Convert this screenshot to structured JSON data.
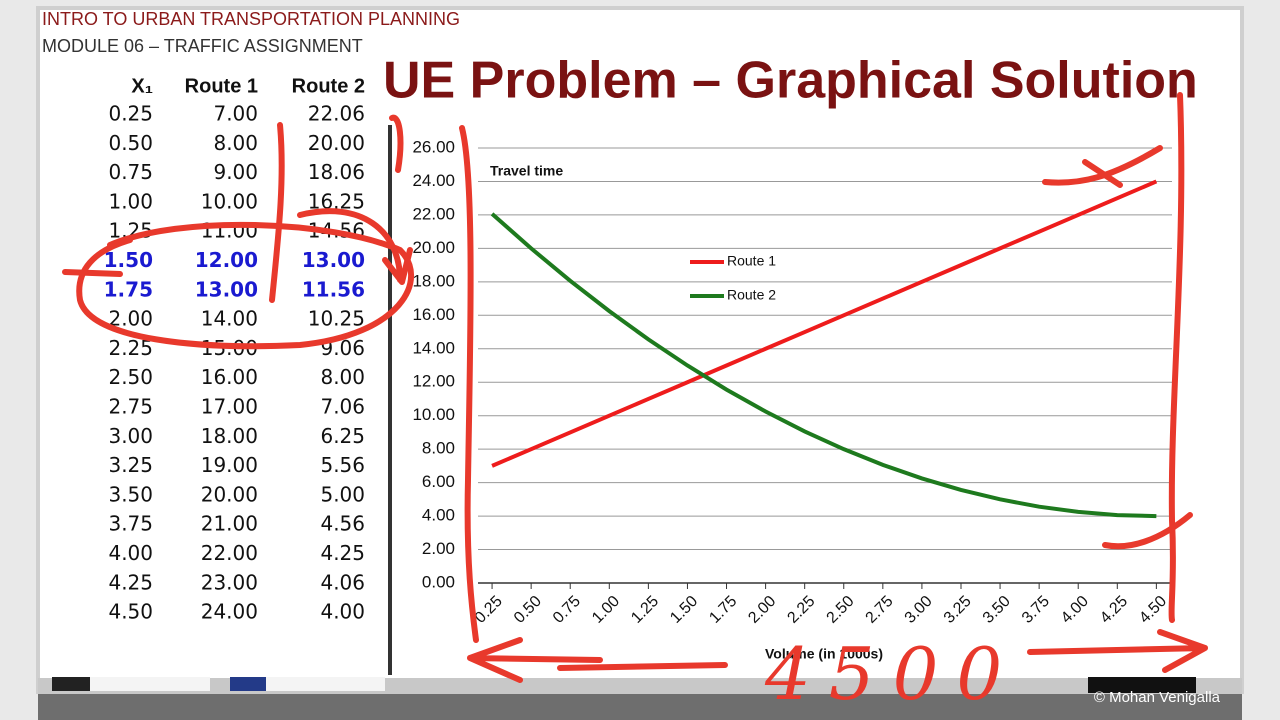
{
  "header": {
    "course": "INTRO TO URBAN TRANSPORTATION PLANNING",
    "module": "MODULE 06 – TRAFFIC ASSIGNMENT"
  },
  "table": {
    "columns": [
      "X₁",
      "Route 1",
      "Route 2"
    ],
    "rows": [
      [
        "0.25",
        "7.00",
        "22.06"
      ],
      [
        "0.50",
        "8.00",
        "20.00"
      ],
      [
        "0.75",
        "9.00",
        "18.06"
      ],
      [
        "1.00",
        "10.00",
        "16.25"
      ],
      [
        "1.25",
        "11.00",
        "14.56"
      ],
      [
        "1.50",
        "12.00",
        "13.00"
      ],
      [
        "1.75",
        "13.00",
        "11.56"
      ],
      [
        "2.00",
        "14.00",
        "10.25"
      ],
      [
        "2.25",
        "15.00",
        "9.06"
      ],
      [
        "2.50",
        "16.00",
        "8.00"
      ],
      [
        "2.75",
        "17.00",
        "7.06"
      ],
      [
        "3.00",
        "18.00",
        "6.25"
      ],
      [
        "3.25",
        "19.00",
        "5.56"
      ],
      [
        "3.50",
        "20.00",
        "5.00"
      ],
      [
        "3.75",
        "21.00",
        "4.56"
      ],
      [
        "4.00",
        "22.00",
        "4.25"
      ],
      [
        "4.25",
        "23.00",
        "4.06"
      ],
      [
        "4.50",
        "24.00",
        "4.00"
      ]
    ],
    "highlighted_rows": [
      5,
      6
    ],
    "highlight_color": "#1a1ad0"
  },
  "chart_data": {
    "type": "line",
    "title": "UE Problem – Graphical Solution",
    "y_label": "Travel time",
    "x_label": "Volume (in 1000s)",
    "x": [
      0.25,
      0.5,
      0.75,
      1,
      1.25,
      1.5,
      1.75,
      2,
      2.25,
      2.5,
      2.75,
      3,
      3.25,
      3.5,
      3.75,
      4,
      4.25,
      4.5
    ],
    "series": [
      {
        "name": "Route 1",
        "color": "#ee1c1c",
        "values": [
          7,
          8,
          9,
          10,
          11,
          12,
          13,
          14,
          15,
          16,
          17,
          18,
          19,
          20,
          21,
          22,
          23,
          24
        ]
      },
      {
        "name": "Route 2",
        "color": "#1e7a1e",
        "values": [
          22.06,
          20,
          18.06,
          16.25,
          14.56,
          13,
          11.56,
          10.25,
          9.06,
          8,
          7.06,
          6.25,
          5.56,
          5,
          4.56,
          4.25,
          4.06,
          4
        ]
      }
    ],
    "xlim": [
      0.16,
      4.6
    ],
    "xticks": [
      {
        "value": 0.25,
        "label": "0.25"
      },
      {
        "value": 0.5,
        "label": "0.50"
      },
      {
        "value": 0.75,
        "label": "0.75"
      },
      {
        "value": 1,
        "label": "1.00"
      },
      {
        "value": 1.25,
        "label": "1.25"
      },
      {
        "value": 1.5,
        "label": "1.50"
      },
      {
        "value": 1.75,
        "label": "1.75"
      },
      {
        "value": 2,
        "label": "2.00"
      },
      {
        "value": 2.25,
        "label": "2.25"
      },
      {
        "value": 2.5,
        "label": "2.50"
      },
      {
        "value": 2.75,
        "label": "2.75"
      },
      {
        "value": 3,
        "label": "3.00"
      },
      {
        "value": 3.25,
        "label": "3.25"
      },
      {
        "value": 3.5,
        "label": "3.50"
      },
      {
        "value": 3.75,
        "label": "3.75"
      },
      {
        "value": 4,
        "label": "4.00"
      },
      {
        "value": 4.25,
        "label": "4.25"
      },
      {
        "value": 4.5,
        "label": "4.50"
      }
    ],
    "ylim": [
      0,
      26
    ],
    "yticks": [
      {
        "value": 0,
        "label": "0.00"
      },
      {
        "value": 2,
        "label": "2.00"
      },
      {
        "value": 4,
        "label": "4.00"
      },
      {
        "value": 6,
        "label": "6.00"
      },
      {
        "value": 8,
        "label": "8.00"
      },
      {
        "value": 10,
        "label": "10.00"
      },
      {
        "value": 12,
        "label": "12.00"
      },
      {
        "value": 14,
        "label": "14.00"
      },
      {
        "value": 16,
        "label": "16.00"
      },
      {
        "value": 18,
        "label": "18.00"
      },
      {
        "value": 20,
        "label": "20.00"
      },
      {
        "value": 22,
        "label": "22.00"
      },
      {
        "value": 24,
        "label": "24.00"
      },
      {
        "value": 26,
        "label": "26.00"
      }
    ],
    "grid": true
  },
  "annotation": "4500",
  "footer": "© Mohan Venigalla"
}
